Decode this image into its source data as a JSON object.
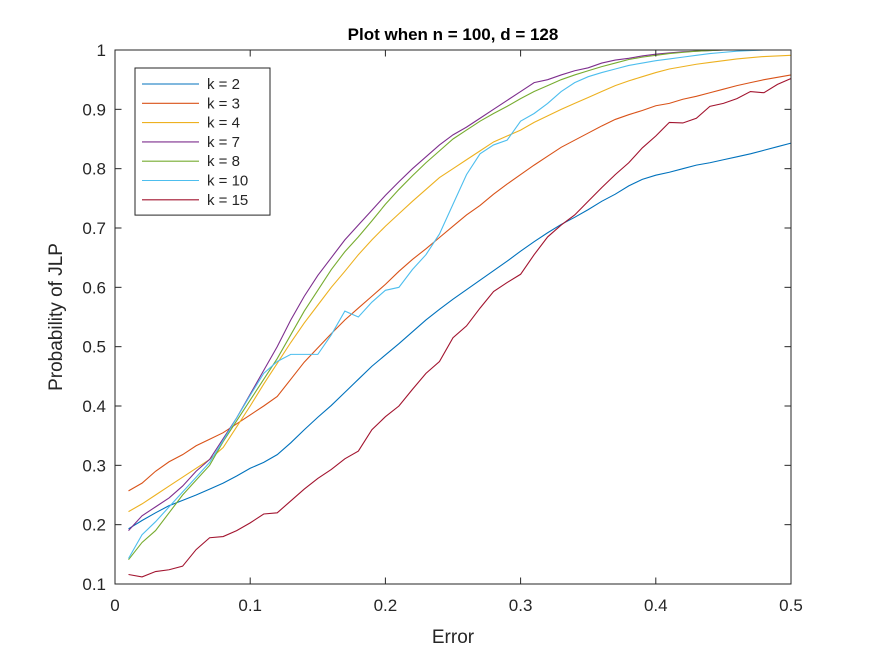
{
  "chart_data": {
    "type": "line",
    "title": "Plot when n = 100, d = 128",
    "xlabel": "Error",
    "ylabel": "Probability of JLP",
    "xlim": [
      0,
      0.5
    ],
    "ylim": [
      0.1,
      1
    ],
    "xticks": [
      "0",
      "0.1",
      "0.2",
      "0.3",
      "0.4",
      "0.5"
    ],
    "yticks": [
      "0.1",
      "0.2",
      "0.3",
      "0.4",
      "0.5",
      "0.6",
      "0.7",
      "0.8",
      "0.9",
      "1"
    ],
    "grid": false,
    "legend_position": "top-left",
    "x": [
      0.01,
      0.02,
      0.03,
      0.04,
      0.05,
      0.06,
      0.07,
      0.08,
      0.09,
      0.1,
      0.11,
      0.12,
      0.13,
      0.14,
      0.15,
      0.16,
      0.17,
      0.18,
      0.19,
      0.2,
      0.21,
      0.22,
      0.23,
      0.24,
      0.25,
      0.26,
      0.27,
      0.28,
      0.29,
      0.3,
      0.31,
      0.32,
      0.33,
      0.34,
      0.35,
      0.36,
      0.37,
      0.38,
      0.39,
      0.4,
      0.41,
      0.42,
      0.43,
      0.44,
      0.45,
      0.46,
      0.47,
      0.48,
      0.49,
      0.5
    ],
    "series": [
      {
        "name": "k = 2",
        "color": "#0072BD",
        "values": [
          0.193,
          0.207,
          0.22,
          0.232,
          0.241,
          0.25,
          0.26,
          0.27,
          0.282,
          0.295,
          0.305,
          0.318,
          0.338,
          0.36,
          0.381,
          0.401,
          0.423,
          0.445,
          0.467,
          0.486,
          0.505,
          0.525,
          0.545,
          0.563,
          0.58,
          0.596,
          0.612,
          0.628,
          0.644,
          0.661,
          0.677,
          0.692,
          0.706,
          0.718,
          0.731,
          0.745,
          0.757,
          0.771,
          0.782,
          0.789,
          0.794,
          0.8,
          0.806,
          0.81,
          0.815,
          0.82,
          0.825,
          0.831,
          0.837,
          0.843
        ]
      },
      {
        "name": "k = 3",
        "color": "#D95319",
        "values": [
          0.257,
          0.27,
          0.29,
          0.306,
          0.318,
          0.333,
          0.344,
          0.355,
          0.37,
          0.385,
          0.4,
          0.416,
          0.445,
          0.474,
          0.498,
          0.522,
          0.545,
          0.565,
          0.585,
          0.605,
          0.627,
          0.647,
          0.665,
          0.684,
          0.703,
          0.722,
          0.738,
          0.757,
          0.774,
          0.79,
          0.806,
          0.821,
          0.836,
          0.848,
          0.86,
          0.872,
          0.883,
          0.891,
          0.898,
          0.906,
          0.91,
          0.917,
          0.922,
          0.928,
          0.934,
          0.94,
          0.945,
          0.95,
          0.954,
          0.958
        ]
      },
      {
        "name": "k = 4",
        "color": "#EDB120",
        "values": [
          0.222,
          0.235,
          0.25,
          0.265,
          0.28,
          0.295,
          0.31,
          0.33,
          0.365,
          0.4,
          0.437,
          0.472,
          0.507,
          0.54,
          0.57,
          0.6,
          0.627,
          0.655,
          0.68,
          0.703,
          0.724,
          0.745,
          0.765,
          0.785,
          0.8,
          0.815,
          0.83,
          0.845,
          0.855,
          0.865,
          0.878,
          0.889,
          0.9,
          0.91,
          0.92,
          0.93,
          0.94,
          0.948,
          0.955,
          0.962,
          0.968,
          0.972,
          0.976,
          0.979,
          0.982,
          0.985,
          0.987,
          0.989,
          0.99,
          0.991
        ]
      },
      {
        "name": "k = 7",
        "color": "#7E2F8E",
        "values": [
          0.19,
          0.215,
          0.23,
          0.245,
          0.265,
          0.29,
          0.31,
          0.345,
          0.38,
          0.42,
          0.46,
          0.5,
          0.545,
          0.585,
          0.62,
          0.65,
          0.68,
          0.705,
          0.73,
          0.755,
          0.778,
          0.8,
          0.82,
          0.84,
          0.857,
          0.87,
          0.885,
          0.9,
          0.915,
          0.93,
          0.945,
          0.95,
          0.958,
          0.965,
          0.97,
          0.978,
          0.983,
          0.986,
          0.99,
          0.993,
          0.995,
          0.997,
          0.998,
          0.999,
          1.0,
          1.0,
          1.0,
          1.0,
          1.0,
          1.0
        ]
      },
      {
        "name": "k = 8",
        "color": "#77AC30",
        "values": [
          0.141,
          0.17,
          0.19,
          0.22,
          0.25,
          0.275,
          0.3,
          0.34,
          0.375,
          0.41,
          0.445,
          0.48,
          0.52,
          0.56,
          0.595,
          0.63,
          0.66,
          0.685,
          0.712,
          0.74,
          0.765,
          0.788,
          0.81,
          0.83,
          0.85,
          0.865,
          0.88,
          0.893,
          0.905,
          0.918,
          0.93,
          0.94,
          0.95,
          0.958,
          0.965,
          0.972,
          0.978,
          0.984,
          0.988,
          0.991,
          0.994,
          0.996,
          0.998,
          0.999,
          1.0,
          1.0,
          1.0,
          1.0,
          1.0,
          1.0
        ]
      },
      {
        "name": "k = 10",
        "color": "#4DBEEE",
        "values": [
          0.143,
          0.183,
          0.205,
          0.23,
          0.255,
          0.28,
          0.305,
          0.342,
          0.38,
          0.418,
          0.455,
          0.475,
          0.487,
          0.487,
          0.487,
          0.52,
          0.56,
          0.55,
          0.575,
          0.595,
          0.6,
          0.63,
          0.655,
          0.69,
          0.74,
          0.79,
          0.825,
          0.84,
          0.848,
          0.88,
          0.893,
          0.91,
          0.93,
          0.945,
          0.955,
          0.962,
          0.968,
          0.974,
          0.978,
          0.982,
          0.985,
          0.988,
          0.991,
          0.994,
          0.996,
          0.998,
          0.999,
          1.0,
          1.0,
          1.0
        ]
      },
      {
        "name": "k = 15",
        "color": "#A2142F",
        "values": [
          0.116,
          0.112,
          0.121,
          0.124,
          0.13,
          0.158,
          0.178,
          0.18,
          0.19,
          0.203,
          0.218,
          0.22,
          0.24,
          0.26,
          0.278,
          0.293,
          0.311,
          0.324,
          0.36,
          0.382,
          0.4,
          0.428,
          0.455,
          0.475,
          0.515,
          0.535,
          0.565,
          0.593,
          0.608,
          0.622,
          0.655,
          0.685,
          0.705,
          0.722,
          0.745,
          0.768,
          0.79,
          0.81,
          0.835,
          0.855,
          0.878,
          0.877,
          0.885,
          0.905,
          0.91,
          0.918,
          0.93,
          0.928,
          0.942,
          0.952
        ]
      }
    ]
  }
}
